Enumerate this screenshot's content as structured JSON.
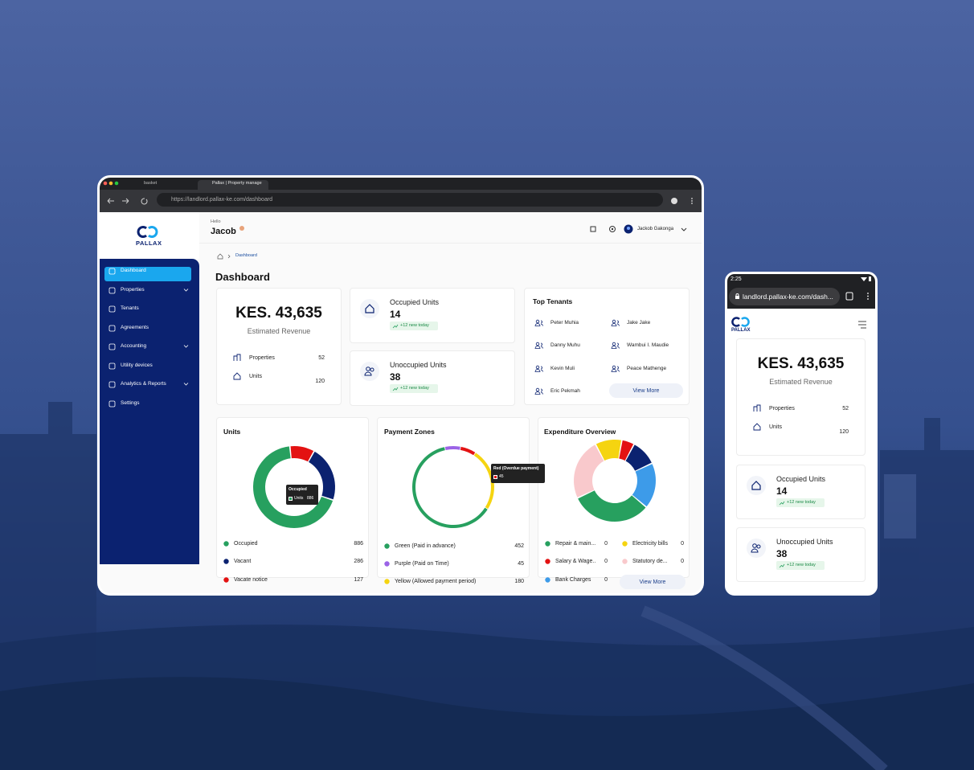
{
  "browser": {
    "tabs": [
      "basket",
      "Pallax | Property manage"
    ],
    "url": "https://landlord.pallax-ke.com/dashboard"
  },
  "sidebar": {
    "logo": "PALLAX",
    "nav": [
      "Dashboard",
      "Properties",
      "Tenants",
      "Agreements",
      "Accounting",
      "Utility devices",
      "Analytics & Reports",
      "Settings"
    ]
  },
  "header": {
    "greeting": "Hello",
    "name": "Jacob",
    "user": "Jackob Gakonga"
  },
  "breadcrumb": "Dashboard",
  "page_title": "Dashboard",
  "revenue": {
    "amount": "KES. 43,635",
    "label": "Estimated Revenue",
    "rows": [
      {
        "label": "Properties",
        "value": 52
      },
      {
        "label": "Units",
        "value": 120
      }
    ]
  },
  "occupied": {
    "label": "Occupied Units",
    "value": 14,
    "trend": "+12 new today"
  },
  "unoccupied": {
    "label": "Unoccupied Units",
    "value": 38,
    "trend": "+12 new today"
  },
  "top_tenants": {
    "title": "Top Tenants",
    "names": [
      "Peter Muhia",
      "Jake Jake",
      "Danny Muhu",
      "Wambui I. Maudie",
      "Kevin Muli",
      "Peace Mathenge",
      "Eric Pekmah"
    ],
    "button": "View More"
  },
  "units_chart": {
    "title": "Units",
    "segments": [
      {
        "name": "Occupied",
        "color": "#27a05f",
        "value": 886
      },
      {
        "name": "Vacant",
        "color": "#0b2270",
        "value": 286
      },
      {
        "name": "Vacate notice",
        "color": "#e31212",
        "value": 127
      }
    ],
    "tooltip": {
      "title": "Occupied",
      "label": "Units",
      "value": 886
    }
  },
  "payment_chart": {
    "title": "Payment Zones",
    "segments": [
      {
        "name": "Green (Paid in advance)",
        "color": "#27a05f",
        "value": 452
      },
      {
        "name": "Purple (Paid on Time)",
        "color": "#9b63e6",
        "value": 45
      },
      {
        "name": "Yellow (Allowed payment period)",
        "color": "#f5d410",
        "value": 180
      }
    ],
    "tooltip": {
      "name": "Red (Overdue payment)",
      "color": "#e31212",
      "value": 45
    }
  },
  "expenditure_chart": {
    "title": "Expenditure Overview",
    "items": [
      {
        "name": "Repair & main...",
        "color": "#27a05f",
        "value": 0
      },
      {
        "name": "Electricity bills",
        "color": "#f5d410",
        "value": 0
      },
      {
        "name": "Salary & Wage..",
        "color": "#e31212",
        "value": 0
      },
      {
        "name": "Statutory de...",
        "color": "#f9c9cc",
        "value": 0
      },
      {
        "name": "Bank Charges",
        "color": "#3d9be9",
        "value": 0
      }
    ],
    "button": "View More"
  },
  "mobile": {
    "time": "2:25",
    "url": "landlord.pallax-ke.com/dash..."
  }
}
